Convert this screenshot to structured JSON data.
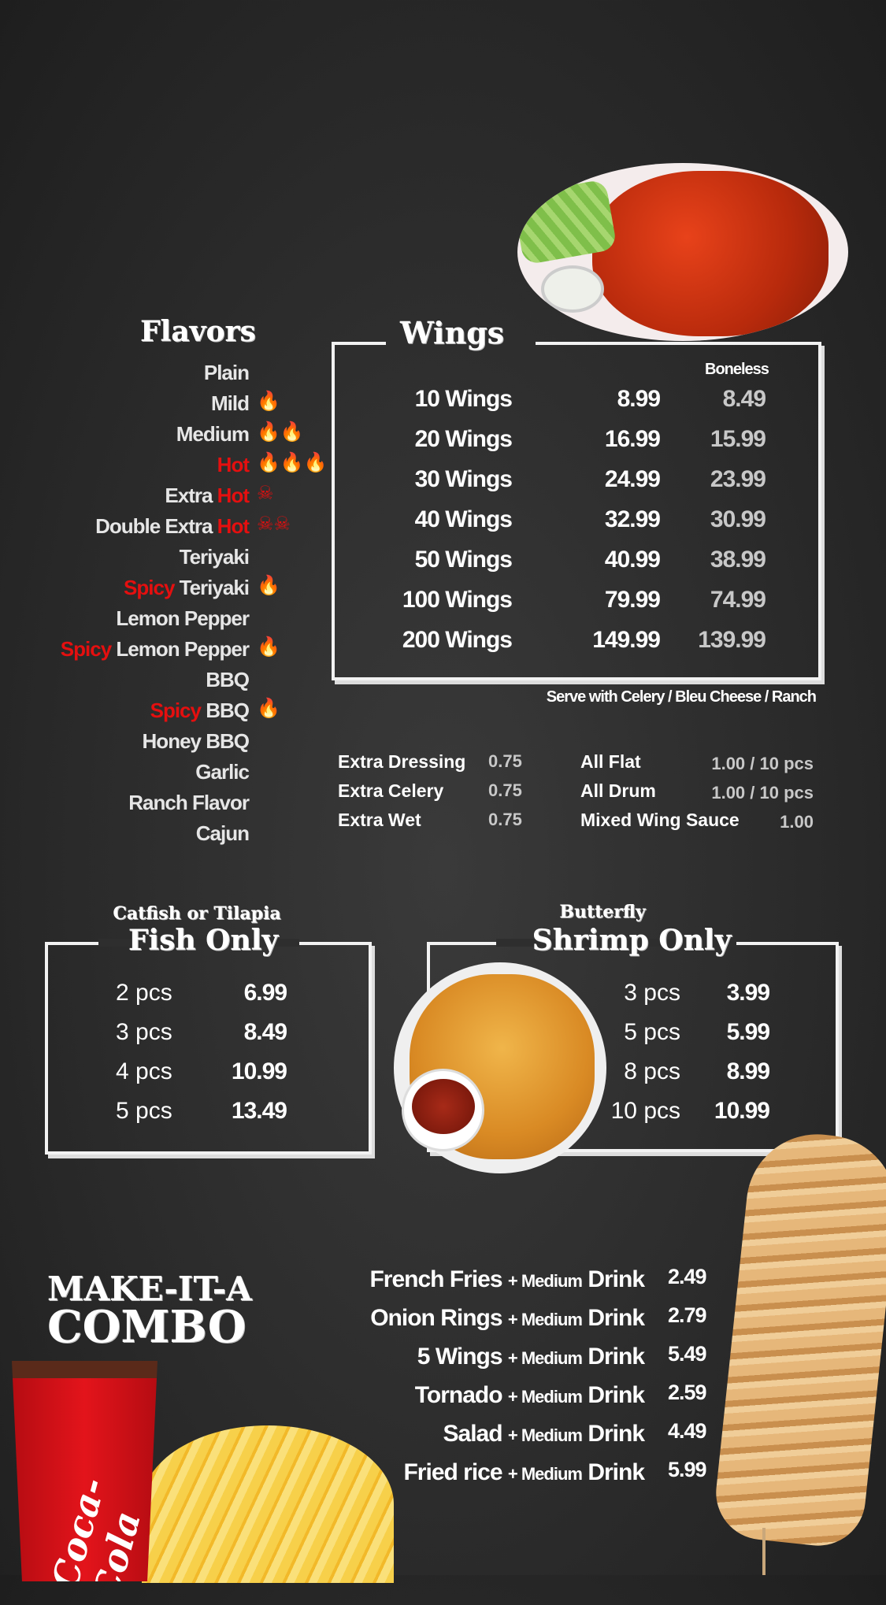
{
  "flavors": {
    "title": "Flavors",
    "items": [
      {
        "prefix": "",
        "name": "Plain",
        "icon": "",
        "count": 0
      },
      {
        "prefix": "",
        "name": "Mild",
        "icon": "flame-icon",
        "count": 1
      },
      {
        "prefix": "",
        "name": "Medium",
        "icon": "flame-icon",
        "count": 2
      },
      {
        "prefix": "Hot",
        "name": "",
        "icon": "flame-icon",
        "count": 3
      },
      {
        "prefix": "",
        "name": "Extra",
        "suffix": "Hot",
        "icon": "skull-crossbones-icon",
        "count": 1
      },
      {
        "prefix": "",
        "name": "Double Extra",
        "suffix": "Hot",
        "icon": "skull-crossbones-icon",
        "count": 2
      },
      {
        "prefix": "",
        "name": "Teriyaki",
        "icon": "",
        "count": 0
      },
      {
        "prefix": "Spicy",
        "name": "Teriyaki",
        "icon": "flame-icon",
        "count": 1
      },
      {
        "prefix": "",
        "name": "Lemon Pepper",
        "icon": "",
        "count": 0
      },
      {
        "prefix": "Spicy",
        "name": "Lemon Pepper",
        "icon": "flame-icon",
        "count": 1
      },
      {
        "prefix": "",
        "name": "BBQ",
        "icon": "",
        "count": 0
      },
      {
        "prefix": "Spicy",
        "name": "BBQ",
        "icon": "flame-icon",
        "count": 1
      },
      {
        "prefix": "",
        "name": "Honey BBQ",
        "icon": "",
        "count": 0
      },
      {
        "prefix": "",
        "name": "Garlic",
        "icon": "",
        "count": 0
      },
      {
        "prefix": "",
        "name": "Ranch Flavor",
        "icon": "",
        "count": 0
      },
      {
        "prefix": "",
        "name": "Cajun",
        "icon": "",
        "count": 0
      }
    ]
  },
  "wings": {
    "title": "Wings",
    "boneless_header": "Boneless",
    "rows": [
      {
        "label": "10 Wings",
        "price": "8.99",
        "boneless": "8.49"
      },
      {
        "label": "20 Wings",
        "price": "16.99",
        "boneless": "15.99"
      },
      {
        "label": "30 Wings",
        "price": "24.99",
        "boneless": "23.99"
      },
      {
        "label": "40 Wings",
        "price": "32.99",
        "boneless": "30.99"
      },
      {
        "label": "50 Wings",
        "price": "40.99",
        "boneless": "38.99"
      },
      {
        "label": "100 Wings",
        "price": "79.99",
        "boneless": "74.99"
      },
      {
        "label": "200 Wings",
        "price": "149.99",
        "boneless": "139.99"
      }
    ],
    "note": "Serve with Celery / Bleu Cheese / Ranch"
  },
  "extras": {
    "left": [
      {
        "label": "Extra Dressing",
        "price": "0.75"
      },
      {
        "label": "Extra Celery",
        "price": "0.75"
      },
      {
        "label": "Extra Wet",
        "price": "0.75"
      }
    ],
    "right": [
      {
        "label": "All Flat",
        "price": "1.00 / 10 pcs"
      },
      {
        "label": "All Drum",
        "price": "1.00 / 10 pcs"
      },
      {
        "label": "Mixed Wing Sauce",
        "price": "1.00"
      }
    ]
  },
  "fish": {
    "subtitle": "Catfish or Tilapia",
    "title": "Fish Only",
    "rows": [
      {
        "label": "2 pcs",
        "price": "6.99"
      },
      {
        "label": "3 pcs",
        "price": "8.49"
      },
      {
        "label": "4 pcs",
        "price": "10.99"
      },
      {
        "label": "5 pcs",
        "price": "13.49"
      }
    ]
  },
  "shrimp": {
    "subtitle": "Butterfly",
    "title": "Shrimp Only",
    "rows": [
      {
        "label": "3 pcs",
        "price": "3.99"
      },
      {
        "label": "5 pcs",
        "price": "5.99"
      },
      {
        "label": "8 pcs",
        "price": "8.99"
      },
      {
        "label": "10 pcs",
        "price": "10.99"
      }
    ]
  },
  "combo": {
    "title_line1": "MAKE-IT-A",
    "title_line2": "COMBO",
    "joiner": "+ Medium",
    "drink": "Drink",
    "items": [
      {
        "name": "French Fries",
        "price": "2.49"
      },
      {
        "name": "Onion Rings",
        "price": "2.79"
      },
      {
        "name": "5 Wings",
        "price": "5.49"
      },
      {
        "name": "Tornado",
        "price": "2.59"
      },
      {
        "name": "Salad",
        "price": "4.49"
      },
      {
        "name": "Fried rice",
        "price": "5.99"
      }
    ]
  },
  "images": {
    "cup_logo": "Coca-Cola"
  },
  "colors": {
    "background": "#2b2b2b",
    "accent_red": "#e50f0f",
    "text": "#ffffff"
  }
}
